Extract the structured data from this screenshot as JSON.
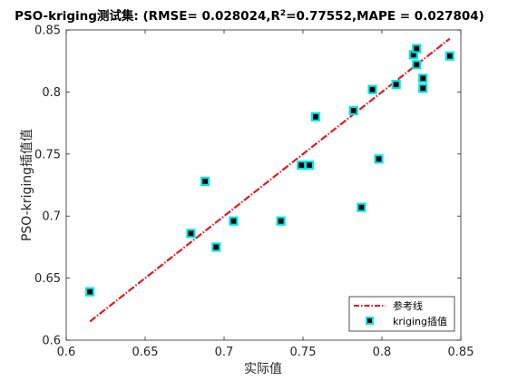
{
  "chart_data": {
    "type": "scatter",
    "title_prefix": "PSO-kriging测试集: (RMSE= 0.028024,R",
    "title_sup": "2",
    "title_suffix": "=0.77552,MAPE  = 0.027804)",
    "xlabel": "实际值",
    "ylabel": "PSO-kriging插值值",
    "xlim": [
      0.6,
      0.85
    ],
    "ylim": [
      0.6,
      0.85
    ],
    "xticks": [
      "0.6",
      "0.65",
      "0.7",
      "0.75",
      "0.8",
      "0.85"
    ],
    "yticks": [
      "0.6",
      "0.65",
      "0.7",
      "0.75",
      "0.8",
      "0.85"
    ],
    "legend_position": "bottom-right",
    "series": [
      {
        "name": "参考线",
        "kind": "line",
        "style": "dash-dot",
        "color": "#e31a1c",
        "x": [
          0.615,
          0.843
        ],
        "y": [
          0.615,
          0.843
        ]
      },
      {
        "name": "kriging插值",
        "kind": "scatter",
        "marker": "square",
        "color": "#00e5e5",
        "edge_color": "#000000",
        "points": [
          [
            0.615,
            0.639
          ],
          [
            0.679,
            0.686
          ],
          [
            0.688,
            0.728
          ],
          [
            0.695,
            0.675
          ],
          [
            0.706,
            0.696
          ],
          [
            0.736,
            0.696
          ],
          [
            0.749,
            0.741
          ],
          [
            0.754,
            0.741
          ],
          [
            0.758,
            0.78
          ],
          [
            0.782,
            0.785
          ],
          [
            0.787,
            0.707
          ],
          [
            0.794,
            0.802
          ],
          [
            0.798,
            0.746
          ],
          [
            0.809,
            0.806
          ],
          [
            0.82,
            0.83
          ],
          [
            0.822,
            0.835
          ],
          [
            0.822,
            0.822
          ],
          [
            0.826,
            0.811
          ],
          [
            0.826,
            0.803
          ],
          [
            0.843,
            0.829
          ]
        ]
      }
    ]
  }
}
